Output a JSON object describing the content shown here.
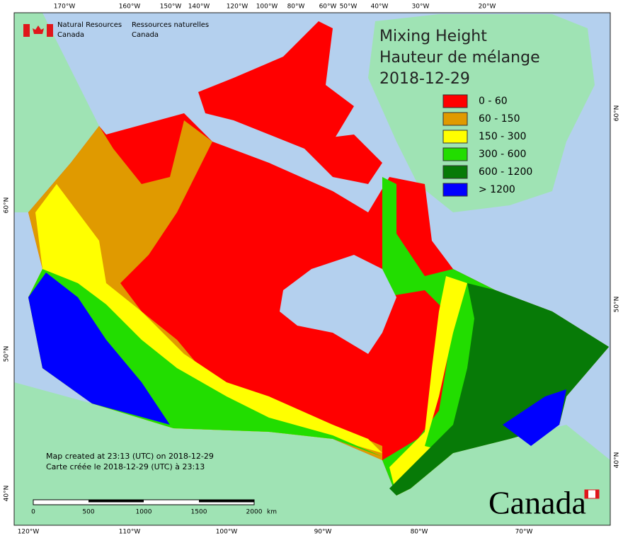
{
  "header": {
    "org_en_1": "Natural Resources",
    "org_en_2": "Canada",
    "org_fr_1": "Ressources naturelles",
    "org_fr_2": "Canada"
  },
  "title": [
    "Mixing Height",
    "Hauteur de mélange",
    "2018-12-29"
  ],
  "legend": [
    {
      "label": "0 - 60",
      "color": "#ff0000"
    },
    {
      "label": "60 - 150",
      "color": "#e09a00"
    },
    {
      "label": "150 - 300",
      "color": "#ffff00"
    },
    {
      "label": "300 - 600",
      "color": "#22dd00"
    },
    {
      "label": "600 - 1200",
      "color": "#077a07"
    },
    {
      "label": "> 1200",
      "color": "#0000ff"
    }
  ],
  "top_labels": [
    "170°W",
    "160°W",
    "150°W",
    "140°W",
    "120°W",
    "100°W",
    "80°W",
    "60°W",
    "50°W",
    "40°W",
    "30°W",
    "20°W"
  ],
  "bottom_labels": [
    "120°W",
    "110°W",
    "100°W",
    "90°W",
    "80°W",
    "70°W"
  ],
  "left_labels": [
    "60°N",
    "50°N",
    "40°N"
  ],
  "right_labels": [
    "60°N",
    "50°N",
    "40°N"
  ],
  "credits": [
    "Map created at 23:13 (UTC) on 2018-12-29",
    "Carte créée le 2018-12-29 (UTC) à 23:13"
  ],
  "scale": {
    "ticks": [
      "0",
      "500",
      "1000",
      "1500",
      "2000"
    ],
    "unit": "km"
  },
  "wordmark": "Canada"
}
